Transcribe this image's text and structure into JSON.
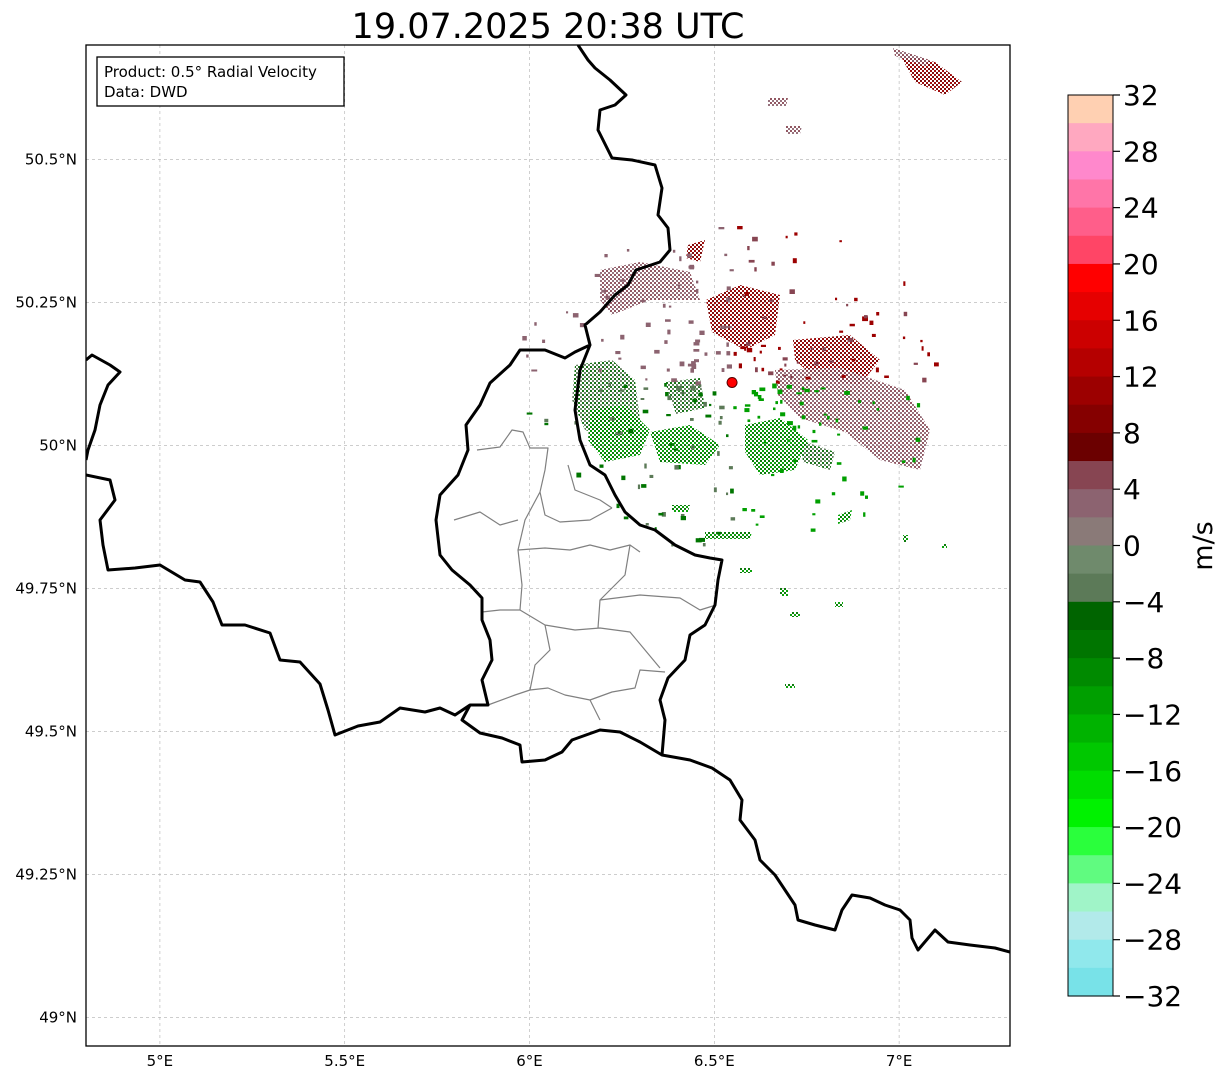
{
  "title": "19.07.2025 20:38 UTC",
  "info_box": {
    "product": "Product: 0.5° Radial Velocity",
    "source": "Data: DWD"
  },
  "map": {
    "lon_range": [
      4.8,
      7.3
    ],
    "lat_range": [
      48.95,
      50.7
    ],
    "x_ticks": [
      {
        "value": 5.0,
        "label": "5°E"
      },
      {
        "value": 5.5,
        "label": "5.5°E"
      },
      {
        "value": 6.0,
        "label": "6°E"
      },
      {
        "value": 6.5,
        "label": "6.5°E"
      },
      {
        "value": 7.0,
        "label": "7°E"
      }
    ],
    "y_ticks": [
      {
        "value": 49.0,
        "label": "49°N"
      },
      {
        "value": 49.25,
        "label": "49.25°N"
      },
      {
        "value": 49.5,
        "label": "49.5°N"
      },
      {
        "value": 49.75,
        "label": "49.75°N"
      },
      {
        "value": 50.0,
        "label": "50°N"
      },
      {
        "value": 50.25,
        "label": "50.25°N"
      },
      {
        "value": 50.5,
        "label": "50.5°N"
      }
    ],
    "gridlines": true,
    "radar_site": {
      "lon": 6.548,
      "lat": 50.11,
      "color": "#ff0000"
    }
  },
  "colorbar": {
    "label": "m/s",
    "min": -32,
    "max": 32,
    "step": 4,
    "tick_labels": [
      "32",
      "28",
      "24",
      "20",
      "16",
      "12",
      "8",
      "4",
      "0",
      "−4",
      "−8",
      "−12",
      "−16",
      "−20",
      "−24",
      "−28",
      "−32"
    ],
    "bins_top_to_bottom": [
      "#ffd0b2",
      "#ffa8c0",
      "#ff88cc",
      "#ff75a8",
      "#ff5e8a",
      "#ff4566",
      "#ff0000",
      "#e60000",
      "#cc0000",
      "#b50000",
      "#9c0000",
      "#850000",
      "#6b0000",
      "#874552",
      "#8c6370",
      "#8a7a78",
      "#6f8a6c",
      "#5c7a58",
      "#006400",
      "#007500",
      "#008a00",
      "#009f00",
      "#00b300",
      "#00c800",
      "#00dd00",
      "#00f200",
      "#2aff3c",
      "#60fb80",
      "#a0f4c8",
      "#b2eaea",
      "#90e8ec",
      "#78e2e8"
    ]
  }
}
